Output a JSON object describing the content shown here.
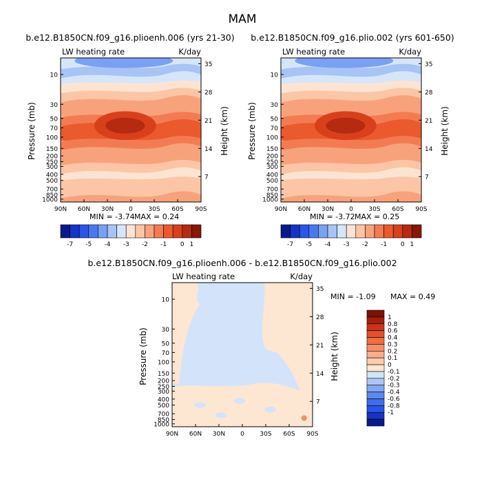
{
  "figure": {
    "title": "MAM"
  },
  "colors": {
    "panel_scale": [
      "#0a1a8c",
      "#1633c6",
      "#2a55e6",
      "#4a78ef",
      "#7aa0f2",
      "#a8c4f5",
      "#d6e6fa",
      "#fde4d2",
      "#fbc5a6",
      "#f8a27c",
      "#f37b52",
      "#ea5a2c",
      "#d8401c",
      "#b52a10",
      "#8a1606"
    ],
    "diff_scale": [
      "#0a1a8c",
      "#1633c6",
      "#2a55e6",
      "#3f6cec",
      "#5d88f0",
      "#86a6f3",
      "#adc6f6",
      "#d3e4fa",
      "#fde6d2",
      "#fcccaf",
      "#f9ad8a",
      "#f48e66",
      "#ee6e45",
      "#e4502a",
      "#cc3417",
      "#a31f0b",
      "#7c1104"
    ]
  },
  "chart_data": [
    {
      "type": "heatmap",
      "title": "b.e12.B1850CN.f09_g16.plioenh.006 (yrs 21-30)",
      "left_label": "LW heating rate",
      "right_label": "K/day",
      "xlabel": "",
      "ylabel": "Pressure (mb)",
      "y2label": "Height (km)",
      "x_ticks": [
        "90N",
        "60N",
        "30N",
        "0",
        "30S",
        "60S",
        "90S"
      ],
      "y_ticks": [
        "10",
        "30",
        "50",
        "70",
        "100",
        "150",
        "200",
        "250",
        "300",
        "400",
        "500",
        "700",
        "850",
        "1000"
      ],
      "y2_ticks": [
        "35",
        "28",
        "21",
        "14",
        "7"
      ],
      "min_label": "MIN = -3.74",
      "max_label": "MAX = 0.24",
      "min": -3.74,
      "max": 0.24,
      "x": [
        -90,
        -60,
        -30,
        0,
        30,
        60,
        90
      ],
      "levels": [
        -7.5,
        -6.5,
        -5.5,
        -4.5,
        -3.5,
        -2.75,
        -2.25,
        -1.75,
        -1.25,
        -0.75,
        -0.25,
        0.25,
        0.75,
        1.25,
        1.75
      ],
      "colorbar_labels": [
        "-7",
        "-5",
        "-4",
        "-3",
        "-2",
        "-1",
        "0",
        "1"
      ],
      "colorbar_label_bins": [
        1,
        3,
        5,
        7,
        9,
        11,
        13,
        14
      ],
      "bands_top_to_bottom": [
        6,
        5,
        6,
        7,
        8,
        9,
        9,
        10,
        11,
        11,
        10,
        9,
        9,
        8,
        7,
        8,
        8,
        9
      ]
    },
    {
      "type": "heatmap",
      "title": "b.e12.B1850CN.f09_g16.plio.002 (yrs 601-650)",
      "left_label": "LW heating rate",
      "right_label": "K/day",
      "xlabel": "",
      "ylabel": "Pressure (mb)",
      "y2label": "Height (km)",
      "x_ticks": [
        "90N",
        "60N",
        "30N",
        "0",
        "30S",
        "60S",
        "90S"
      ],
      "y_ticks": [
        "10",
        "30",
        "50",
        "70",
        "100",
        "150",
        "200",
        "250",
        "300",
        "400",
        "500",
        "700",
        "850",
        "1000"
      ],
      "y2_ticks": [
        "35",
        "28",
        "21",
        "14",
        "7"
      ],
      "min_label": "MIN = -3.72",
      "max_label": "MAX = 0.25",
      "min": -3.72,
      "max": 0.25,
      "x": [
        -90,
        -60,
        -30,
        0,
        30,
        60,
        90
      ],
      "levels": [
        -7.5,
        -6.5,
        -5.5,
        -4.5,
        -3.5,
        -2.75,
        -2.25,
        -1.75,
        -1.25,
        -0.75,
        -0.25,
        0.25,
        0.75,
        1.25,
        1.75
      ],
      "colorbar_labels": [
        "-7",
        "-5",
        "-4",
        "-3",
        "-2",
        "-1",
        "0",
        "1"
      ],
      "colorbar_label_bins": [
        1,
        3,
        5,
        7,
        9,
        11,
        13,
        14
      ],
      "bands_top_to_bottom": [
        6,
        5,
        6,
        7,
        8,
        9,
        9,
        10,
        11,
        11,
        10,
        9,
        9,
        8,
        7,
        8,
        8,
        9
      ]
    },
    {
      "type": "heatmap",
      "title": "b.e12.B1850CN.f09_g16.plioenh.006 - b.e12.B1850CN.f09_g16.plio.002",
      "left_label": "LW heating rate",
      "right_label": "K/day",
      "xlabel": "",
      "ylabel": "Pressure (mb)",
      "y2label": "Height (km)",
      "x_ticks": [
        "90N",
        "60N",
        "30N",
        "0",
        "30S",
        "60S",
        "90S"
      ],
      "y_ticks": [
        "10",
        "30",
        "50",
        "70",
        "100",
        "150",
        "200",
        "250",
        "300",
        "400",
        "500",
        "700",
        "850",
        "1000"
      ],
      "y2_ticks": [
        "35",
        "28",
        "21",
        "14",
        "7"
      ],
      "min_label": "MIN = -1.09",
      "max_label": "MAX = 0.49",
      "min": -1.09,
      "max": 0.49,
      "x": [
        -90,
        -60,
        -30,
        0,
        30,
        60,
        90
      ],
      "colorbar_labels": [
        "1",
        "0.8",
        "0.6",
        "0.4",
        "0.3",
        "0.2",
        "0.1",
        "0",
        "-0.1",
        "-0.2",
        "-0.3",
        "-0.4",
        "-0.6",
        "-0.8",
        "-1"
      ]
    }
  ]
}
